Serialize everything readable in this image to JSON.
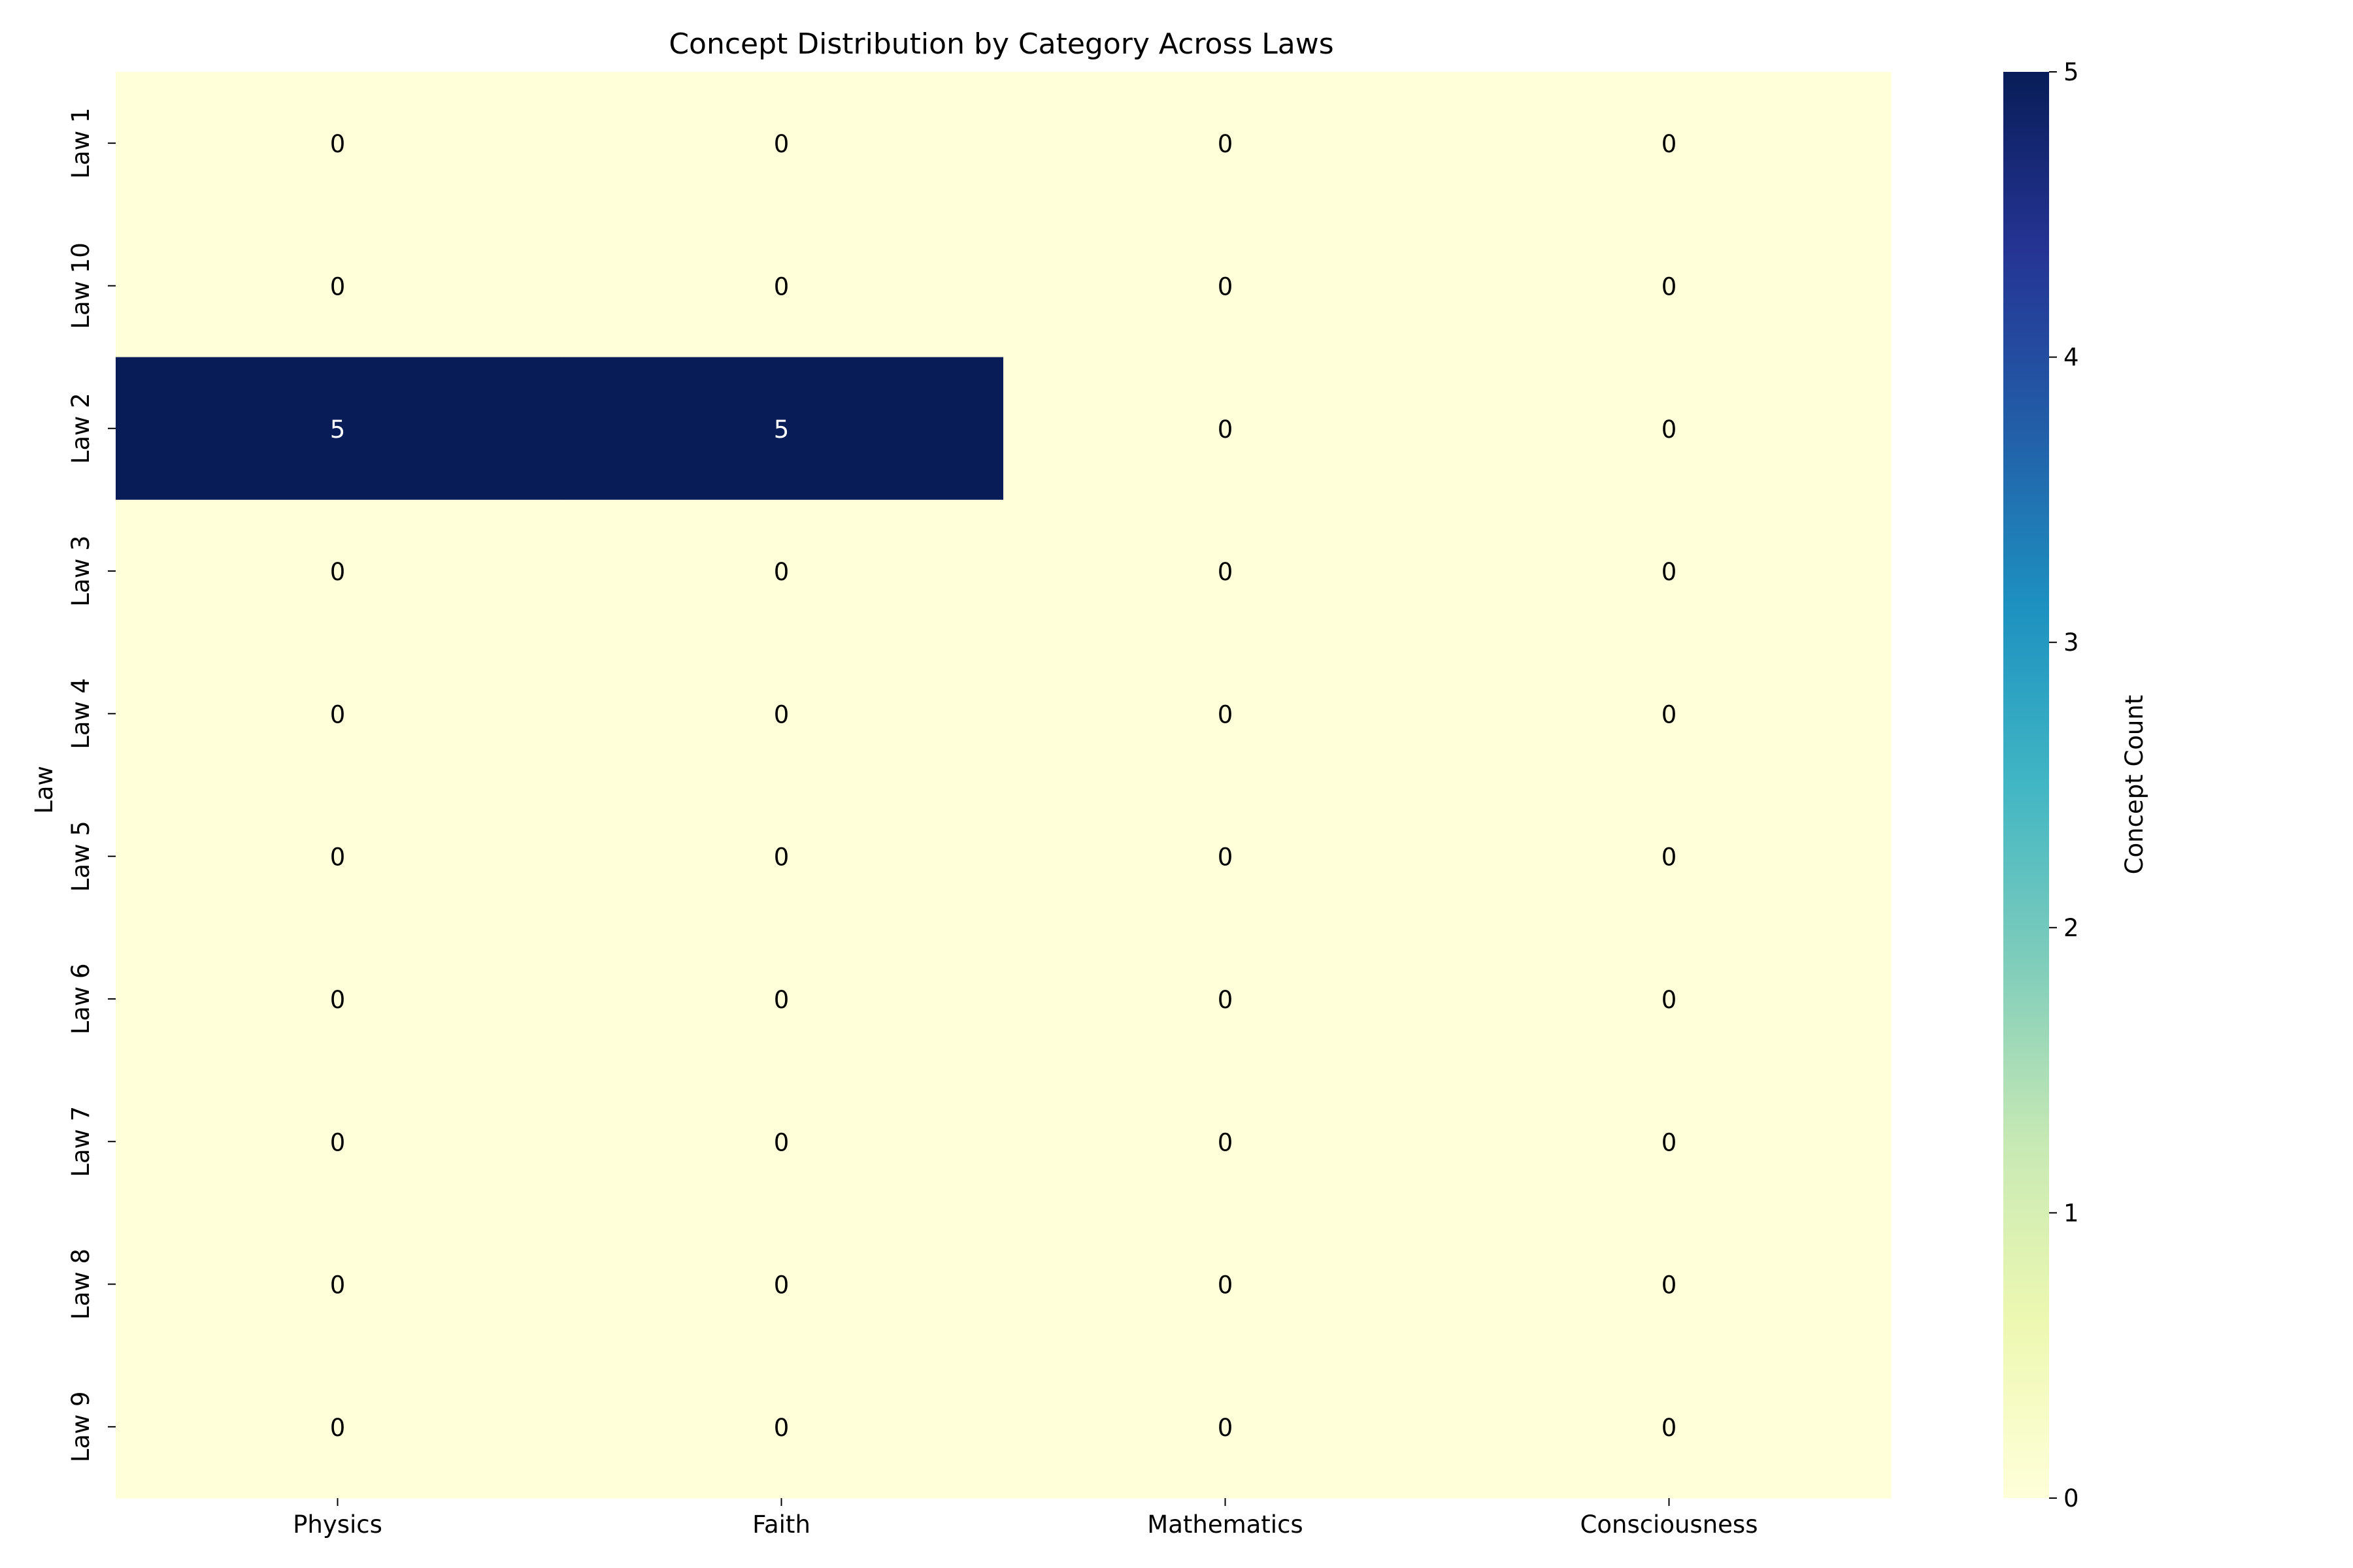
{
  "chart_data": {
    "type": "heatmap",
    "title": "Concept Distribution by Category Across Laws",
    "xlabel": "",
    "ylabel": "Law",
    "x_categories": [
      "Physics",
      "Faith",
      "Mathematics",
      "Consciousness"
    ],
    "y_categories": [
      "Law 1",
      "Law 10",
      "Law 2",
      "Law 3",
      "Law 4",
      "Law 5",
      "Law 6",
      "Law 7",
      "Law 8",
      "Law 9"
    ],
    "values": [
      [
        0,
        0,
        0,
        0
      ],
      [
        0,
        0,
        0,
        0
      ],
      [
        5,
        5,
        0,
        0
      ],
      [
        0,
        0,
        0,
        0
      ],
      [
        0,
        0,
        0,
        0
      ],
      [
        0,
        0,
        0,
        0
      ],
      [
        0,
        0,
        0,
        0
      ],
      [
        0,
        0,
        0,
        0
      ],
      [
        0,
        0,
        0,
        0
      ],
      [
        0,
        0,
        0,
        0
      ]
    ],
    "annotations": true,
    "colormap": "YlGnBu",
    "vmin": 0,
    "vmax": 5,
    "colorbar": {
      "label": "Concept Count",
      "ticks": [
        0,
        1,
        2,
        3,
        4,
        5
      ]
    },
    "colors": {
      "low": "#ffffd9",
      "high": "#081d58",
      "annotation_dark": "#000000",
      "annotation_light": "#ffffff"
    }
  }
}
